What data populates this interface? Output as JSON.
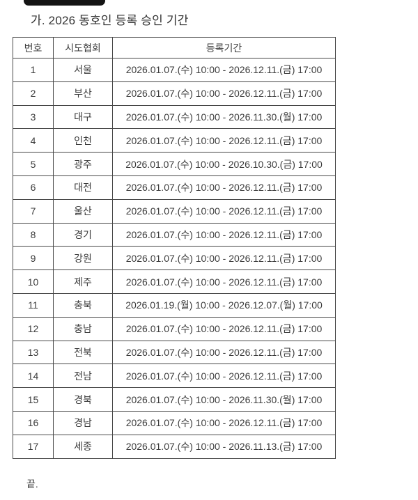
{
  "page": {
    "title": "가. 2026 동호인 등록 승인 기간",
    "end_marker": "끝."
  },
  "table": {
    "columns": [
      "번호",
      "시도협회",
      "등록기간"
    ],
    "rows": [
      {
        "no": "1",
        "association": "서울",
        "period": "2026.01.07.(수) 10:00 - 2026.12.11.(금) 17:00"
      },
      {
        "no": "2",
        "association": "부산",
        "period": "2026.01.07.(수) 10:00 - 2026.12.11.(금) 17:00"
      },
      {
        "no": "3",
        "association": "대구",
        "period": "2026.01.07.(수) 10:00 - 2026.11.30.(월) 17:00"
      },
      {
        "no": "4",
        "association": "인천",
        "period": "2026.01.07.(수) 10:00 - 2026.12.11.(금) 17:00"
      },
      {
        "no": "5",
        "association": "광주",
        "period": "2026.01.07.(수) 10:00 - 2026.10.30.(금) 17:00"
      },
      {
        "no": "6",
        "association": "대전",
        "period": "2026.01.07.(수) 10:00 - 2026.12.11.(금) 17:00"
      },
      {
        "no": "7",
        "association": "울산",
        "period": "2026.01.07.(수) 10:00 - 2026.12.11.(금) 17:00"
      },
      {
        "no": "8",
        "association": "경기",
        "period": "2026.01.07.(수) 10:00 - 2026.12.11.(금) 17:00"
      },
      {
        "no": "9",
        "association": "강원",
        "period": "2026.01.07.(수) 10:00 - 2026.12.11.(금) 17:00"
      },
      {
        "no": "10",
        "association": "제주",
        "period": "2026.01.07.(수) 10:00 - 2026.12.11.(금) 17:00"
      },
      {
        "no": "11",
        "association": "충북",
        "period": "2026.01.19.(월) 10:00 - 2026.12.07.(월) 17:00"
      },
      {
        "no": "12",
        "association": "충남",
        "period": "2026.01.07.(수) 10:00 - 2026.12.11.(금) 17:00"
      },
      {
        "no": "13",
        "association": "전북",
        "period": "2026.01.07.(수) 10:00 - 2026.12.11.(금) 17:00"
      },
      {
        "no": "14",
        "association": "전남",
        "period": "2026.01.07.(수) 10:00 - 2026.12.11.(금) 17:00"
      },
      {
        "no": "15",
        "association": "경북",
        "period": "2026.01.07.(수) 10:00 - 2026.11.30.(월) 17:00"
      },
      {
        "no": "16",
        "association": "경남",
        "period": "2026.01.07.(수) 10:00 - 2026.12.11.(금) 17:00"
      },
      {
        "no": "17",
        "association": "세종",
        "period": "2026.01.07.(수) 10:00 - 2026.11.13.(금) 17:00"
      }
    ]
  },
  "colors": {
    "background": "#ffffff",
    "text": "#3b3b3b",
    "border": "#474747",
    "redaction": "#141414",
    "title": "#333333"
  }
}
